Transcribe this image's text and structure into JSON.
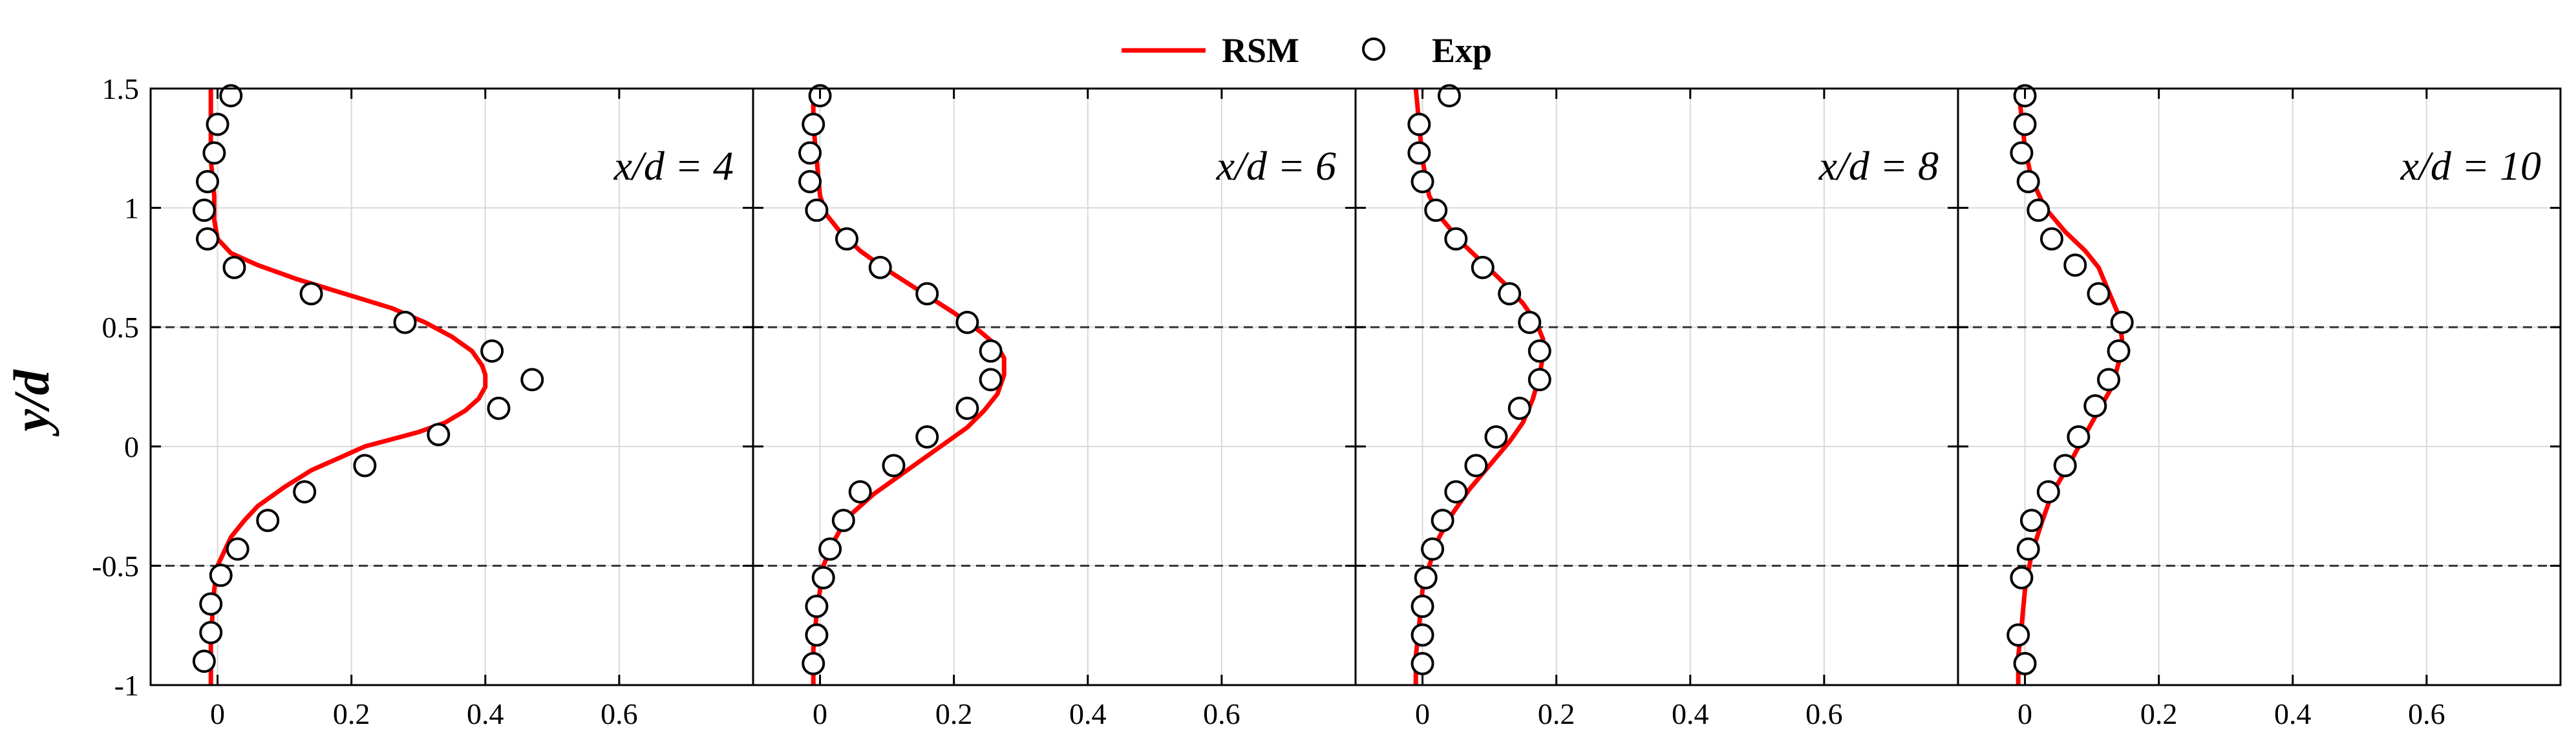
{
  "chart_data": {
    "type": "line",
    "ylabel": "y/d",
    "ylim": [
      -1,
      1.5
    ],
    "xlim": [
      -0.1,
      0.8
    ],
    "yticks": [
      1.5,
      1,
      0.5,
      0,
      -0.5,
      -1
    ],
    "ytick_labels": [
      "1.5",
      "1",
      "0.5",
      "0",
      "-0.5",
      "-1"
    ],
    "xticks": [
      0,
      0.2,
      0.4,
      0.6
    ],
    "xtick_labels": [
      "0",
      "0.2",
      "0.4",
      "0.6"
    ],
    "grid": true,
    "reference_lines_y": [
      0.5,
      -0.5
    ],
    "legend": {
      "position": "top-center",
      "entries": [
        {
          "label": "RSM",
          "style": "line",
          "color": "#ff0000"
        },
        {
          "label": "Exp",
          "style": "open-circle",
          "color": "#000000"
        }
      ]
    },
    "panels": [
      {
        "label": "x/d = 4",
        "series": [
          {
            "name": "RSM",
            "x": [
              -0.01,
              -0.01,
              -0.01,
              -0.005,
              -0.005,
              0,
              0.02,
              0.06,
              0.12,
              0.19,
              0.26,
              0.31,
              0.35,
              0.38,
              0.395,
              0.4,
              0.4,
              0.39,
              0.37,
              0.34,
              0.3,
              0.26,
              0.22,
              0.18,
              0.14,
              0.1,
              0.06,
              0.04,
              0.02,
              0.01,
              0,
              -0.005,
              -0.01,
              -0.01
            ],
            "y": [
              1.5,
              1.35,
              1.2,
              1.05,
              0.95,
              0.87,
              0.81,
              0.76,
              0.7,
              0.64,
              0.58,
              0.52,
              0.46,
              0.4,
              0.34,
              0.3,
              0.25,
              0.2,
              0.15,
              0.1,
              0.06,
              0.03,
              0,
              -0.05,
              -0.1,
              -0.17,
              -0.25,
              -0.31,
              -0.38,
              -0.44,
              -0.5,
              -0.6,
              -0.8,
              -1
            ]
          },
          {
            "name": "Exp",
            "x": [
              0.02,
              0,
              -0.005,
              -0.015,
              -0.02,
              -0.015,
              0.025,
              0.14,
              0.28,
              0.41,
              0.47,
              0.42,
              0.33,
              0.22,
              0.13,
              0.075,
              0.03,
              0.005,
              -0.01,
              -0.01,
              -0.02
            ],
            "y": [
              1.47,
              1.35,
              1.23,
              1.11,
              0.99,
              0.87,
              0.75,
              0.64,
              0.52,
              0.4,
              0.28,
              0.16,
              0.05,
              -0.08,
              -0.19,
              -0.31,
              -0.43,
              -0.54,
              -0.66,
              -0.78,
              -0.9
            ]
          }
        ]
      },
      {
        "label": "x/d = 6",
        "series": [
          {
            "name": "RSM",
            "x": [
              -0.01,
              -0.01,
              -0.005,
              0,
              0.01,
              0.03,
              0.06,
              0.1,
              0.15,
              0.2,
              0.24,
              0.265,
              0.275,
              0.275,
              0.265,
              0.245,
              0.22,
              0.18,
              0.13,
              0.08,
              0.04,
              0.02,
              0.005,
              0,
              -0.005,
              -0.01,
              -0.01
            ],
            "y": [
              1.5,
              1.35,
              1.2,
              1.05,
              0.97,
              0.9,
              0.82,
              0.74,
              0.65,
              0.56,
              0.48,
              0.42,
              0.37,
              0.3,
              0.22,
              0.15,
              0.08,
              0,
              -0.1,
              -0.2,
              -0.3,
              -0.4,
              -0.5,
              -0.6,
              -0.7,
              -0.85,
              -1
            ]
          },
          {
            "name": "Exp",
            "x": [
              0,
              -0.01,
              -0.015,
              -0.015,
              -0.005,
              0.04,
              0.09,
              0.16,
              0.22,
              0.255,
              0.255,
              0.22,
              0.16,
              0.11,
              0.06,
              0.035,
              0.015,
              0.005,
              -0.005,
              -0.005,
              -0.01
            ],
            "y": [
              1.47,
              1.35,
              1.23,
              1.11,
              0.99,
              0.87,
              0.75,
              0.64,
              0.52,
              0.4,
              0.28,
              0.16,
              0.04,
              -0.08,
              -0.19,
              -0.31,
              -0.43,
              -0.55,
              -0.67,
              -0.79,
              -0.91
            ]
          }
        ]
      },
      {
        "label": "x/d = 8",
        "series": [
          {
            "name": "RSM",
            "x": [
              -0.01,
              -0.005,
              0,
              0.01,
              0.03,
              0.06,
              0.09,
              0.12,
              0.15,
              0.17,
              0.18,
              0.18,
              0.175,
              0.165,
              0.15,
              0.13,
              0.1,
              0.07,
              0.045,
              0.025,
              0.01,
              0,
              -0.005,
              -0.01,
              -0.01
            ],
            "y": [
              1.5,
              1.35,
              1.2,
              1.05,
              0.95,
              0.85,
              0.77,
              0.69,
              0.6,
              0.52,
              0.45,
              0.38,
              0.3,
              0.2,
              0.1,
              0.02,
              -0.08,
              -0.18,
              -0.28,
              -0.38,
              -0.5,
              -0.6,
              -0.75,
              -0.88,
              -1
            ]
          },
          {
            "name": "Exp",
            "x": [
              0.04,
              -0.005,
              -0.005,
              0,
              0.02,
              0.05,
              0.09,
              0.13,
              0.16,
              0.175,
              0.175,
              0.145,
              0.11,
              0.08,
              0.05,
              0.03,
              0.015,
              0.005,
              0,
              0,
              0
            ],
            "y": [
              1.47,
              1.35,
              1.23,
              1.11,
              0.99,
              0.87,
              0.75,
              0.64,
              0.52,
              0.4,
              0.28,
              0.16,
              0.04,
              -0.08,
              -0.19,
              -0.31,
              -0.43,
              -0.55,
              -0.67,
              -0.79,
              -0.91
            ]
          }
        ]
      },
      {
        "label": "x/d = 10",
        "series": [
          {
            "name": "RSM",
            "x": [
              -0.01,
              -0.005,
              0,
              0.01,
              0.03,
              0.06,
              0.09,
              0.11,
              0.125,
              0.14,
              0.145,
              0.14,
              0.13,
              0.11,
              0.09,
              0.065,
              0.04,
              0.025,
              0.01,
              0,
              -0.005,
              -0.01,
              -0.01
            ],
            "y": [
              1.5,
              1.38,
              1.25,
              1.12,
              1,
              0.9,
              0.82,
              0.75,
              0.65,
              0.55,
              0.45,
              0.35,
              0.25,
              0.15,
              0.05,
              -0.08,
              -0.2,
              -0.32,
              -0.45,
              -0.6,
              -0.75,
              -0.88,
              -1
            ]
          },
          {
            "name": "Exp",
            "x": [
              0,
              0,
              -0.005,
              0.005,
              0.02,
              0.04,
              0.075,
              0.11,
              0.145,
              0.14,
              0.125,
              0.105,
              0.08,
              0.06,
              0.035,
              0.01,
              0.005,
              -0.005,
              -0.01,
              0
            ],
            "y": [
              1.47,
              1.35,
              1.23,
              1.11,
              0.99,
              0.87,
              0.76,
              0.64,
              0.52,
              0.4,
              0.28,
              0.17,
              0.04,
              -0.08,
              -0.19,
              -0.31,
              -0.43,
              -0.55,
              -0.79,
              -0.91
            ]
          }
        ]
      }
    ]
  }
}
